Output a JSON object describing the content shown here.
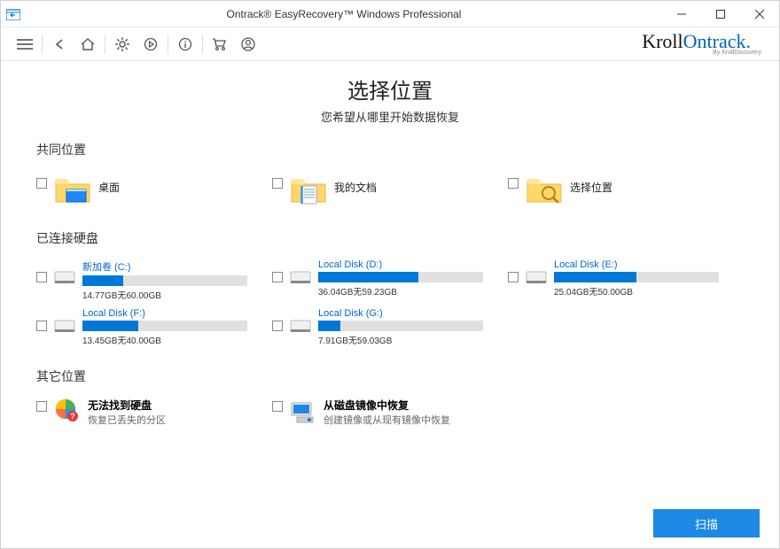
{
  "window": {
    "title": "Ontrack® EasyRecovery™ Windows Professional"
  },
  "brand": {
    "part1": "Kroll",
    "part2": "Ontrack",
    "sub": "By KrollDiscovery"
  },
  "page": {
    "title": "选择位置",
    "subtitle": "您希望从哪里开始数据恢复"
  },
  "sections": {
    "common": "共同位置",
    "disks": "已连接硬盘",
    "other": "其它位置"
  },
  "common_locations": [
    {
      "label": "桌面",
      "icon": "desktop"
    },
    {
      "label": "我的文档",
      "icon": "documents"
    },
    {
      "label": "选择位置",
      "icon": "browse"
    }
  ],
  "disks": [
    {
      "name": "新加卷 (C:)",
      "used": 14.77,
      "total": 60.0,
      "info": "14.77GB无60.00GB"
    },
    {
      "name": "Local Disk (D:)",
      "used": 36.04,
      "total": 59.23,
      "info": "36.04GB无59.23GB"
    },
    {
      "name": "Local Disk (E:)",
      "used": 25.04,
      "total": 50.0,
      "info": "25.04GB无50.00GB"
    },
    {
      "name": "Local Disk (F:)",
      "used": 13.45,
      "total": 40.0,
      "info": "13.45GB无40.00GB"
    },
    {
      "name": "Local Disk (G:)",
      "used": 7.91,
      "total": 59.03,
      "info": "7.91GB无59.03GB"
    }
  ],
  "other": [
    {
      "title": "无法找到硬盘",
      "sub": "恢复已丢失的分区",
      "icon": "lost"
    },
    {
      "title": "从磁盘镜像中恢复",
      "sub": "创建镜像或从现有镜像中恢复",
      "icon": "image"
    }
  ],
  "footer": {
    "scan": "扫描"
  },
  "colors": {
    "accent": "#0078d7",
    "link": "#0066cc",
    "brand2": "#0066b3"
  }
}
